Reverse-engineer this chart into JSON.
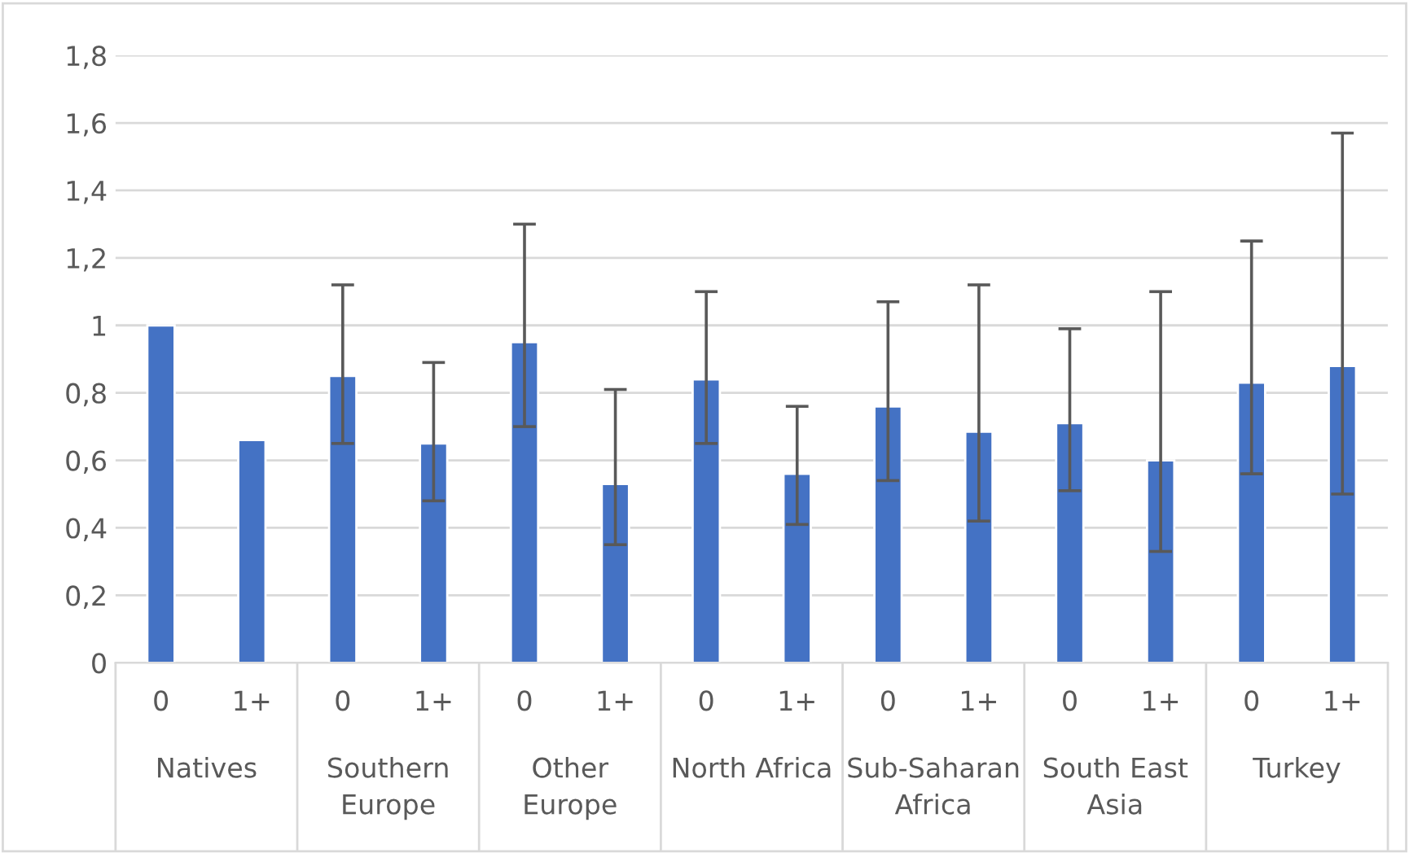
{
  "chart_data": {
    "type": "bar",
    "categories": [
      "0",
      "1+",
      "0",
      "1+",
      "0",
      "1+",
      "0",
      "1+",
      "0",
      "1+",
      "0",
      "1+",
      "0",
      "1+"
    ],
    "values": [
      1.0,
      0.66,
      0.85,
      0.65,
      0.95,
      0.53,
      0.84,
      0.56,
      0.76,
      0.685,
      0.71,
      0.6,
      0.83,
      0.88
    ],
    "errors": [
      null,
      null,
      [
        0.65,
        1.12
      ],
      [
        0.48,
        0.89
      ],
      [
        0.7,
        1.3
      ],
      [
        0.35,
        0.81
      ],
      [
        0.65,
        1.1
      ],
      [
        0.41,
        0.76
      ],
      [
        0.54,
        1.07
      ],
      [
        0.42,
        1.12
      ],
      [
        0.51,
        0.99
      ],
      [
        0.33,
        1.1
      ],
      [
        0.56,
        1.25
      ],
      [
        0.5,
        1.57
      ]
    ],
    "color": "#4472c4",
    "annotations": [
      "Natives",
      "Southern\nEurope",
      "Other\nEurope",
      "North Africa",
      "Sub-Saharan\nAfrica",
      "South East\nAsia",
      "Turkey"
    ],
    "ylim": [
      0,
      1.8
    ],
    "yticks": [
      0,
      {
        "value": 0.2,
        "label": "0,2"
      },
      {
        "value": 0.4,
        "label": "0,4"
      },
      {
        "value": 0.6,
        "label": "0,6"
      },
      {
        "value": 0.8,
        "label": "0,8"
      },
      1,
      {
        "value": 1.2,
        "label": "1,2"
      },
      {
        "value": 1.4,
        "label": "1,4"
      },
      {
        "value": 1.6,
        "label": "1,6"
      },
      {
        "value": 1.8,
        "label": "1,8"
      }
    ],
    "grid": "y"
  }
}
